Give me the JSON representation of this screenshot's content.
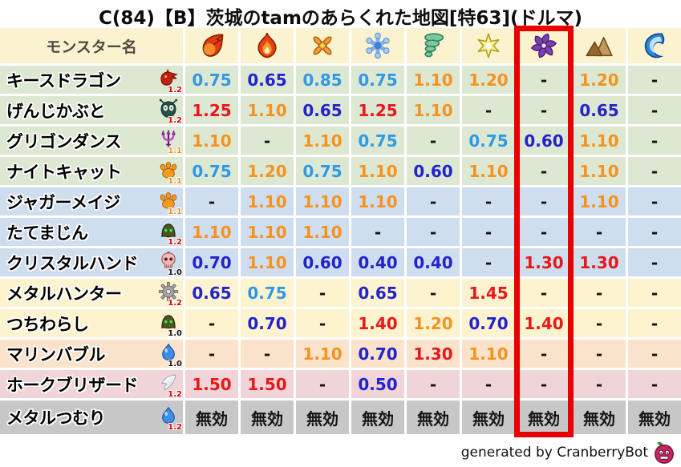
{
  "title": "C(84)【B】茨城のtamのあらくれた地図[特63](ドルマ)",
  "chart_data": {
    "type": "table",
    "header": {
      "monster_col_label": "モンスター名",
      "element_icons": [
        "fireball",
        "flame",
        "cross-burst",
        "snowflake",
        "tornado",
        "star",
        "purple-pinwheel",
        "mountain",
        "wave"
      ],
      "highlighted_column_index": 6
    },
    "rows": [
      {
        "name": "キースドラゴン",
        "icon": "dragon",
        "multiplier": "1.2",
        "group": "green",
        "values": [
          "0.75",
          "0.65",
          "0.85",
          "0.75",
          "1.10",
          "1.20",
          "-",
          "1.20",
          "-"
        ]
      },
      {
        "name": "げんじかぶと",
        "icon": "beetle",
        "multiplier": "1.2",
        "group": "green",
        "values": [
          "1.25",
          "1.10",
          "0.65",
          "1.25",
          "1.10",
          "-",
          "-",
          "0.65",
          "-"
        ]
      },
      {
        "name": "グリゴンダンス",
        "icon": "trident",
        "multiplier": "1.1",
        "group": "green",
        "values": [
          "1.10",
          "-",
          "1.10",
          "0.75",
          "-",
          "0.75",
          "0.60",
          "1.10",
          "-"
        ]
      },
      {
        "name": "ナイトキャット",
        "icon": "paw",
        "multiplier": "1.1",
        "group": "green",
        "values": [
          "0.75",
          "1.20",
          "0.75",
          "1.10",
          "0.60",
          "1.10",
          "-",
          "1.10",
          "-"
        ]
      },
      {
        "name": "ジャガーメイジ",
        "icon": "paw",
        "multiplier": "1.1",
        "group": "blue",
        "values": [
          "-",
          "1.10",
          "1.10",
          "1.10",
          "-",
          "-",
          "-",
          "1.10",
          "-"
        ]
      },
      {
        "name": "たてまじん",
        "icon": "helmet",
        "multiplier": "1.2",
        "group": "blue",
        "values": [
          "1.10",
          "1.10",
          "1.10",
          "-",
          "-",
          "-",
          "-",
          "-",
          "-"
        ]
      },
      {
        "name": "クリスタルハンド",
        "icon": "skull",
        "multiplier": "1.0",
        "group": "blue",
        "values": [
          "0.70",
          "1.10",
          "0.60",
          "0.40",
          "0.40",
          "-",
          "1.30",
          "1.30",
          "-"
        ]
      },
      {
        "name": "メタルハンター",
        "icon": "gear",
        "multiplier": "1.2",
        "group": "cream",
        "values": [
          "0.65",
          "0.75",
          "-",
          "0.65",
          "-",
          "1.45",
          "-",
          "-",
          "-"
        ]
      },
      {
        "name": "つちわらし",
        "icon": "helmet",
        "multiplier": "1.0",
        "group": "cream",
        "values": [
          "-",
          "0.70",
          "-",
          "1.40",
          "1.20",
          "0.70",
          "1.40",
          "-",
          "-"
        ]
      },
      {
        "name": "マリンバブル",
        "icon": "slime",
        "multiplier": "1.0",
        "group": "peach",
        "values": [
          "-",
          "-",
          "1.10",
          "0.70",
          "1.30",
          "1.10",
          "-",
          "-",
          "-"
        ]
      },
      {
        "name": "ホークブリザード",
        "icon": "wing",
        "multiplier": "1.2",
        "group": "pink",
        "values": [
          "1.50",
          "1.50",
          "-",
          "0.50",
          "-",
          "-",
          "-",
          "-",
          "-"
        ]
      },
      {
        "name": "メタルつむり",
        "icon": "slime",
        "multiplier": "1.2",
        "group": "gray",
        "values": [
          "無効",
          "無効",
          "無効",
          "無効",
          "無効",
          "無効",
          "無効",
          "無効",
          "無効"
        ]
      }
    ]
  },
  "footer": {
    "credit": "generated by CranberryBot"
  },
  "colors": {
    "highlight_box": "#e80000",
    "value_strong_resist": "#2323cc",
    "value_resist": "#2f99e8",
    "value_weak": "#f6921e",
    "value_very_weak": "#e81819",
    "header_bg": "#fbf2d0",
    "row_green": "#dde8d2",
    "row_blue": "#cfdeee",
    "row_cream": "#fdf3cf",
    "row_peach": "#fae3ca",
    "row_pink": "#f1d4d8",
    "row_gray": "#c7c7c7"
  }
}
